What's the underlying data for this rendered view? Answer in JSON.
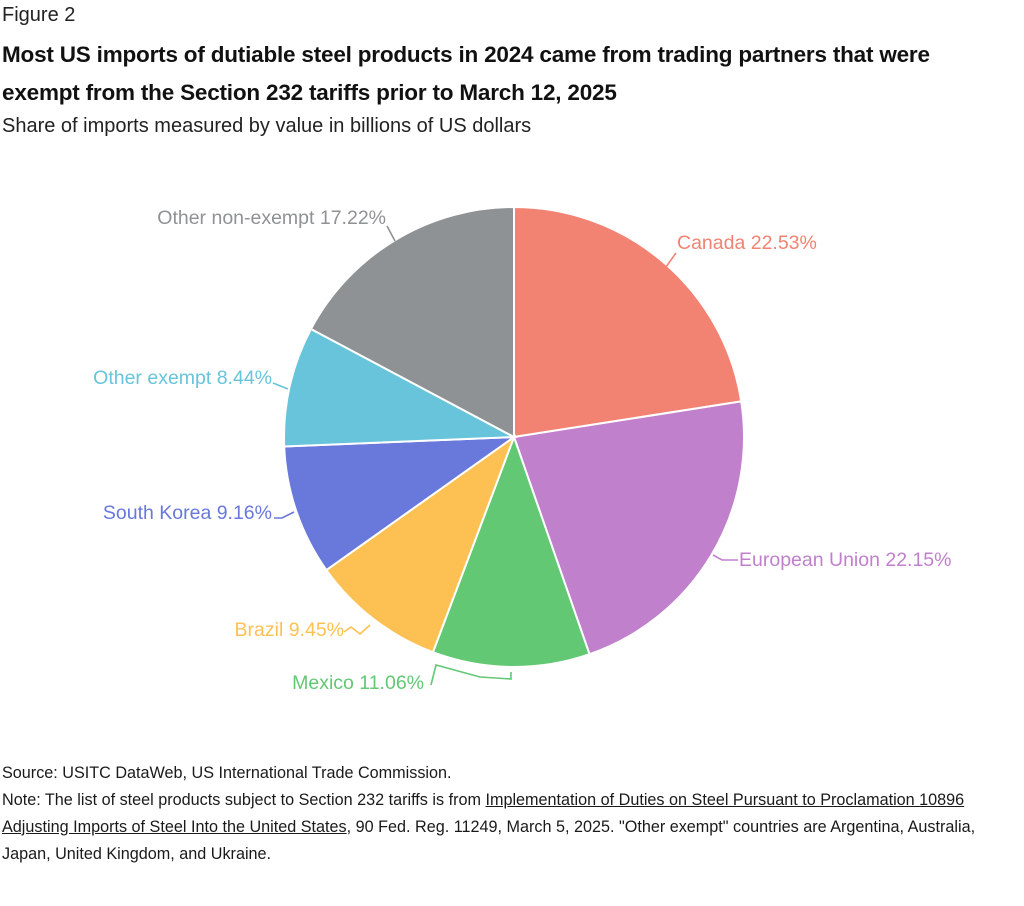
{
  "figure_label": "Figure 2",
  "title": "Most US imports of dutiable steel products in 2024 came from trading partners that were exempt from the Section 232 tariffs prior to March 12, 2025",
  "subtitle": "Share of imports measured by value in billions of US dollars",
  "footer": {
    "source": "Source: USITC DataWeb, US International Trade Commission.",
    "note_prefix": "Note: The list of steel products subject to Section 232 tariffs is from ",
    "note_link": "Implementation of Duties on Steel Pursuant to Proclamation 10896 Adjusting Imports of Steel Into the United States",
    "note_suffix": ", 90 Fed. Reg. 11249, March 5, 2025. \"Other exempt\" countries are Argentina, Australia, Japan, United Kingdom, and Ukraine."
  },
  "chart_data": {
    "type": "pie",
    "title": "Most US imports of dutiable steel products in 2024 came from trading partners that were exempt from the Section 232 tariffs prior to March 12, 2025",
    "subtitle": "Share of imports measured by value in billions of US dollars",
    "start_angle": "12 o'clock",
    "direction": "clockwise",
    "slices": [
      {
        "label": "Canada",
        "value": 22.53,
        "display": "Canada 22.53%",
        "color": "#f28272"
      },
      {
        "label": "European Union",
        "value": 22.15,
        "display": "European Union 22.15%",
        "color": "#c080cc"
      },
      {
        "label": "Mexico",
        "value": 11.06,
        "display": "Mexico 11.06%",
        "color": "#62c874"
      },
      {
        "label": "Brazil",
        "value": 9.45,
        "display": "Brazil 9.45%",
        "color": "#fdc153"
      },
      {
        "label": "South Korea",
        "value": 9.16,
        "display": "South Korea 9.16%",
        "color": "#6878db"
      },
      {
        "label": "Other exempt",
        "value": 8.44,
        "display": "Other exempt 8.44%",
        "color": "#68c4da"
      },
      {
        "label": "Other non-exempt",
        "value": 17.22,
        "display": "Other non-exempt 17.22%",
        "color": "#8f9294"
      }
    ]
  }
}
